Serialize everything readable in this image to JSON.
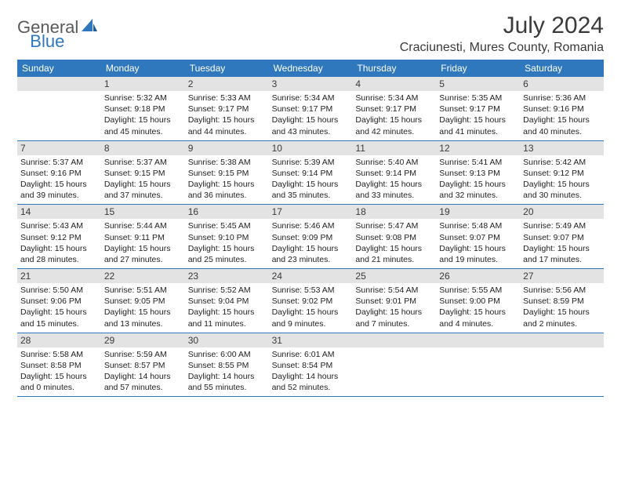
{
  "logo": {
    "general": "General",
    "blue": "Blue"
  },
  "title": "July 2024",
  "location": "Craciunesti, Mures County, Romania",
  "weekdays": [
    "Sunday",
    "Monday",
    "Tuesday",
    "Wednesday",
    "Thursday",
    "Friday",
    "Saturday"
  ],
  "colors": {
    "header_bg": "#2f78bd",
    "daynum_bg": "#e3e3e3",
    "border": "#2f78bd",
    "text": "#3a3a3a",
    "logo_gray": "#5a5a5a",
    "logo_blue": "#2f78bd"
  },
  "weeks": [
    [
      {
        "num": "",
        "sunrise": "",
        "sunset": "",
        "daylight": ""
      },
      {
        "num": "1",
        "sunrise": "Sunrise: 5:32 AM",
        "sunset": "Sunset: 9:18 PM",
        "daylight": "Daylight: 15 hours and 45 minutes."
      },
      {
        "num": "2",
        "sunrise": "Sunrise: 5:33 AM",
        "sunset": "Sunset: 9:17 PM",
        "daylight": "Daylight: 15 hours and 44 minutes."
      },
      {
        "num": "3",
        "sunrise": "Sunrise: 5:34 AM",
        "sunset": "Sunset: 9:17 PM",
        "daylight": "Daylight: 15 hours and 43 minutes."
      },
      {
        "num": "4",
        "sunrise": "Sunrise: 5:34 AM",
        "sunset": "Sunset: 9:17 PM",
        "daylight": "Daylight: 15 hours and 42 minutes."
      },
      {
        "num": "5",
        "sunrise": "Sunrise: 5:35 AM",
        "sunset": "Sunset: 9:17 PM",
        "daylight": "Daylight: 15 hours and 41 minutes."
      },
      {
        "num": "6",
        "sunrise": "Sunrise: 5:36 AM",
        "sunset": "Sunset: 9:16 PM",
        "daylight": "Daylight: 15 hours and 40 minutes."
      }
    ],
    [
      {
        "num": "7",
        "sunrise": "Sunrise: 5:37 AM",
        "sunset": "Sunset: 9:16 PM",
        "daylight": "Daylight: 15 hours and 39 minutes."
      },
      {
        "num": "8",
        "sunrise": "Sunrise: 5:37 AM",
        "sunset": "Sunset: 9:15 PM",
        "daylight": "Daylight: 15 hours and 37 minutes."
      },
      {
        "num": "9",
        "sunrise": "Sunrise: 5:38 AM",
        "sunset": "Sunset: 9:15 PM",
        "daylight": "Daylight: 15 hours and 36 minutes."
      },
      {
        "num": "10",
        "sunrise": "Sunrise: 5:39 AM",
        "sunset": "Sunset: 9:14 PM",
        "daylight": "Daylight: 15 hours and 35 minutes."
      },
      {
        "num": "11",
        "sunrise": "Sunrise: 5:40 AM",
        "sunset": "Sunset: 9:14 PM",
        "daylight": "Daylight: 15 hours and 33 minutes."
      },
      {
        "num": "12",
        "sunrise": "Sunrise: 5:41 AM",
        "sunset": "Sunset: 9:13 PM",
        "daylight": "Daylight: 15 hours and 32 minutes."
      },
      {
        "num": "13",
        "sunrise": "Sunrise: 5:42 AM",
        "sunset": "Sunset: 9:12 PM",
        "daylight": "Daylight: 15 hours and 30 minutes."
      }
    ],
    [
      {
        "num": "14",
        "sunrise": "Sunrise: 5:43 AM",
        "sunset": "Sunset: 9:12 PM",
        "daylight": "Daylight: 15 hours and 28 minutes."
      },
      {
        "num": "15",
        "sunrise": "Sunrise: 5:44 AM",
        "sunset": "Sunset: 9:11 PM",
        "daylight": "Daylight: 15 hours and 27 minutes."
      },
      {
        "num": "16",
        "sunrise": "Sunrise: 5:45 AM",
        "sunset": "Sunset: 9:10 PM",
        "daylight": "Daylight: 15 hours and 25 minutes."
      },
      {
        "num": "17",
        "sunrise": "Sunrise: 5:46 AM",
        "sunset": "Sunset: 9:09 PM",
        "daylight": "Daylight: 15 hours and 23 minutes."
      },
      {
        "num": "18",
        "sunrise": "Sunrise: 5:47 AM",
        "sunset": "Sunset: 9:08 PM",
        "daylight": "Daylight: 15 hours and 21 minutes."
      },
      {
        "num": "19",
        "sunrise": "Sunrise: 5:48 AM",
        "sunset": "Sunset: 9:07 PM",
        "daylight": "Daylight: 15 hours and 19 minutes."
      },
      {
        "num": "20",
        "sunrise": "Sunrise: 5:49 AM",
        "sunset": "Sunset: 9:07 PM",
        "daylight": "Daylight: 15 hours and 17 minutes."
      }
    ],
    [
      {
        "num": "21",
        "sunrise": "Sunrise: 5:50 AM",
        "sunset": "Sunset: 9:06 PM",
        "daylight": "Daylight: 15 hours and 15 minutes."
      },
      {
        "num": "22",
        "sunrise": "Sunrise: 5:51 AM",
        "sunset": "Sunset: 9:05 PM",
        "daylight": "Daylight: 15 hours and 13 minutes."
      },
      {
        "num": "23",
        "sunrise": "Sunrise: 5:52 AM",
        "sunset": "Sunset: 9:04 PM",
        "daylight": "Daylight: 15 hours and 11 minutes."
      },
      {
        "num": "24",
        "sunrise": "Sunrise: 5:53 AM",
        "sunset": "Sunset: 9:02 PM",
        "daylight": "Daylight: 15 hours and 9 minutes."
      },
      {
        "num": "25",
        "sunrise": "Sunrise: 5:54 AM",
        "sunset": "Sunset: 9:01 PM",
        "daylight": "Daylight: 15 hours and 7 minutes."
      },
      {
        "num": "26",
        "sunrise": "Sunrise: 5:55 AM",
        "sunset": "Sunset: 9:00 PM",
        "daylight": "Daylight: 15 hours and 4 minutes."
      },
      {
        "num": "27",
        "sunrise": "Sunrise: 5:56 AM",
        "sunset": "Sunset: 8:59 PM",
        "daylight": "Daylight: 15 hours and 2 minutes."
      }
    ],
    [
      {
        "num": "28",
        "sunrise": "Sunrise: 5:58 AM",
        "sunset": "Sunset: 8:58 PM",
        "daylight": "Daylight: 15 hours and 0 minutes."
      },
      {
        "num": "29",
        "sunrise": "Sunrise: 5:59 AM",
        "sunset": "Sunset: 8:57 PM",
        "daylight": "Daylight: 14 hours and 57 minutes."
      },
      {
        "num": "30",
        "sunrise": "Sunrise: 6:00 AM",
        "sunset": "Sunset: 8:55 PM",
        "daylight": "Daylight: 14 hours and 55 minutes."
      },
      {
        "num": "31",
        "sunrise": "Sunrise: 6:01 AM",
        "sunset": "Sunset: 8:54 PM",
        "daylight": "Daylight: 14 hours and 52 minutes."
      },
      {
        "num": "",
        "sunrise": "",
        "sunset": "",
        "daylight": ""
      },
      {
        "num": "",
        "sunrise": "",
        "sunset": "",
        "daylight": ""
      },
      {
        "num": "",
        "sunrise": "",
        "sunset": "",
        "daylight": ""
      }
    ]
  ]
}
